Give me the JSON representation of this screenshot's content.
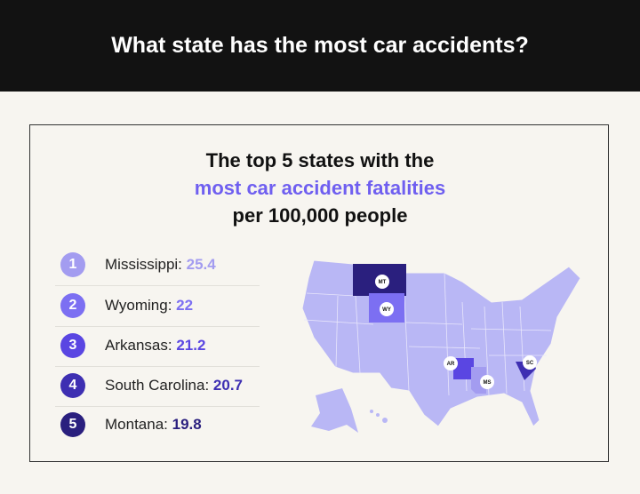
{
  "header": {
    "title": "What state has the most car accidents?"
  },
  "subtitle": {
    "line1": "The top 5 states with the",
    "line2": "most car accident fatalities",
    "line3": "per 100,000 people"
  },
  "accent": "#6f5ff0",
  "ranking": [
    {
      "rank": "1",
      "state": "Mississippi: ",
      "value": "25.4",
      "color": "#a39cf0"
    },
    {
      "rank": "2",
      "state": "Wyoming: ",
      "value": "22",
      "color": "#7c6ff2"
    },
    {
      "rank": "3",
      "state": "Arkansas: ",
      "value": "21.2",
      "color": "#5a46e2"
    },
    {
      "rank": "4",
      "state": "South Carolina: ",
      "value": "20.7",
      "color": "#3e2fb2"
    },
    {
      "rank": "5",
      "state": "Montana: ",
      "value": "19.8",
      "color": "#2a1f7e"
    }
  ],
  "map": {
    "labels": {
      "mt": "MT",
      "wy": "WY",
      "ar": "AR",
      "ms": "MS",
      "sc": "SC"
    },
    "base_color": "#b9b7f5"
  }
}
